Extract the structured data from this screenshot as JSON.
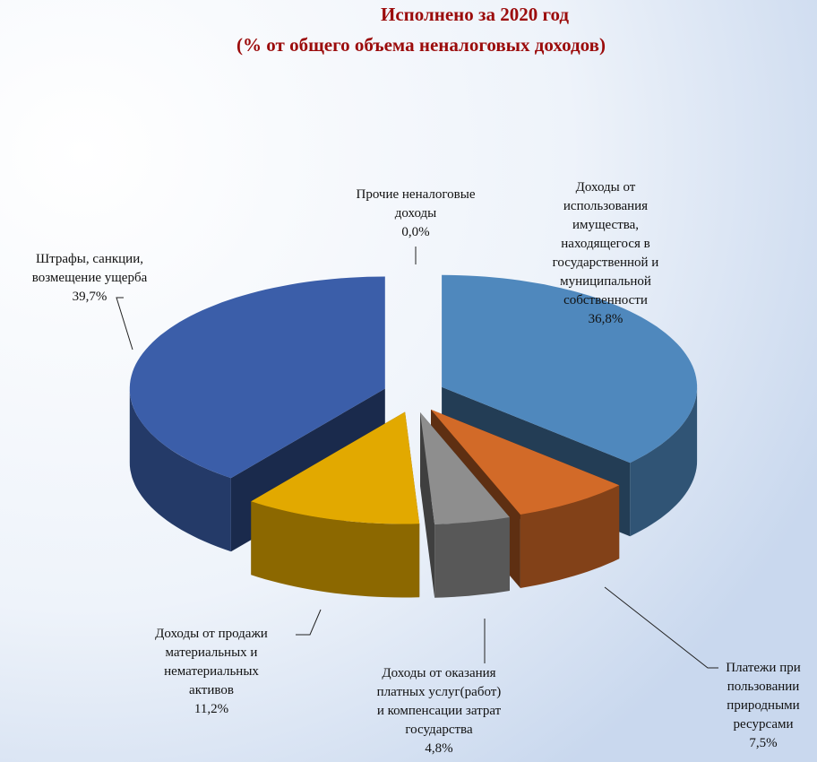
{
  "chart_data": {
    "type": "pie",
    "title": "Исполнено за  2020 год",
    "subtitle": "(% от общего объема неналоговых доходов)",
    "categories": [
      "Доходы от использования имущества, находящегося в государственной и муниципальной собственности",
      "Платежи при пользовании природными ресурсами",
      "Доходы от оказания платных услуг(работ) и компенсации затрат государства",
      "Доходы от продажи материальных и нематериальных активов",
      "Штрафы, санкции, возмещение ущерба",
      "Прочие неналоговые доходы"
    ],
    "values": [
      36.8,
      7.5,
      4.8,
      11.2,
      39.7,
      0.0
    ],
    "value_labels": [
      "36,8%",
      "7,5%",
      "4,8%",
      "11,2%",
      "39,7%",
      "0,0%"
    ],
    "colors": [
      "#4f88bd",
      "#d26a28",
      "#8e8e8e",
      "#e2a900",
      "#3b5ea9",
      "#6b8fc9"
    ]
  }
}
